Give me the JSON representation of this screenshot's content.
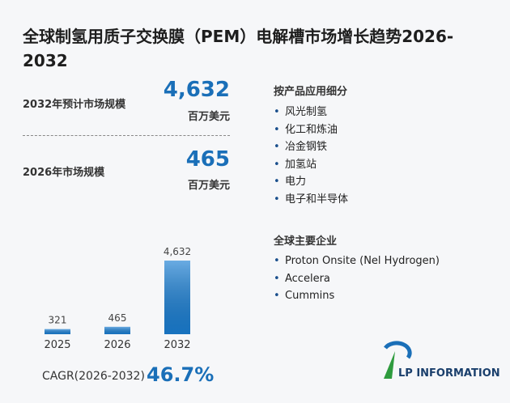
{
  "title": "全球制氢用质子交换膜（PEM）电解槽市场增长趋势2026-2032",
  "stats": [
    {
      "label": "2032年预计市场规模",
      "value": "4,632",
      "unit": "百万美元"
    },
    {
      "label": "2026年市场规模",
      "value": "465",
      "unit": "百万美元"
    }
  ],
  "segments": {
    "heading": "按产品应用细分",
    "items": [
      "风光制氢",
      "化工和炼油",
      "冶金钢铁",
      "加氢站",
      "电力",
      "电子和半导体"
    ]
  },
  "companies": {
    "heading": "全球主要企业",
    "items": [
      "Proton Onsite (Nel Hydrogen)",
      "Accelera",
      "Cummins"
    ]
  },
  "chart_data": {
    "type": "bar",
    "categories": [
      "2025",
      "2026",
      "2032"
    ],
    "values": [
      321,
      465,
      4632
    ],
    "value_labels": [
      "321",
      "465",
      "4,632"
    ],
    "color": "#1a7fd4"
  },
  "cagr": {
    "label": "CAGR(2026-2032)",
    "value": "46.7%"
  },
  "logo": "LP INFORMATION"
}
